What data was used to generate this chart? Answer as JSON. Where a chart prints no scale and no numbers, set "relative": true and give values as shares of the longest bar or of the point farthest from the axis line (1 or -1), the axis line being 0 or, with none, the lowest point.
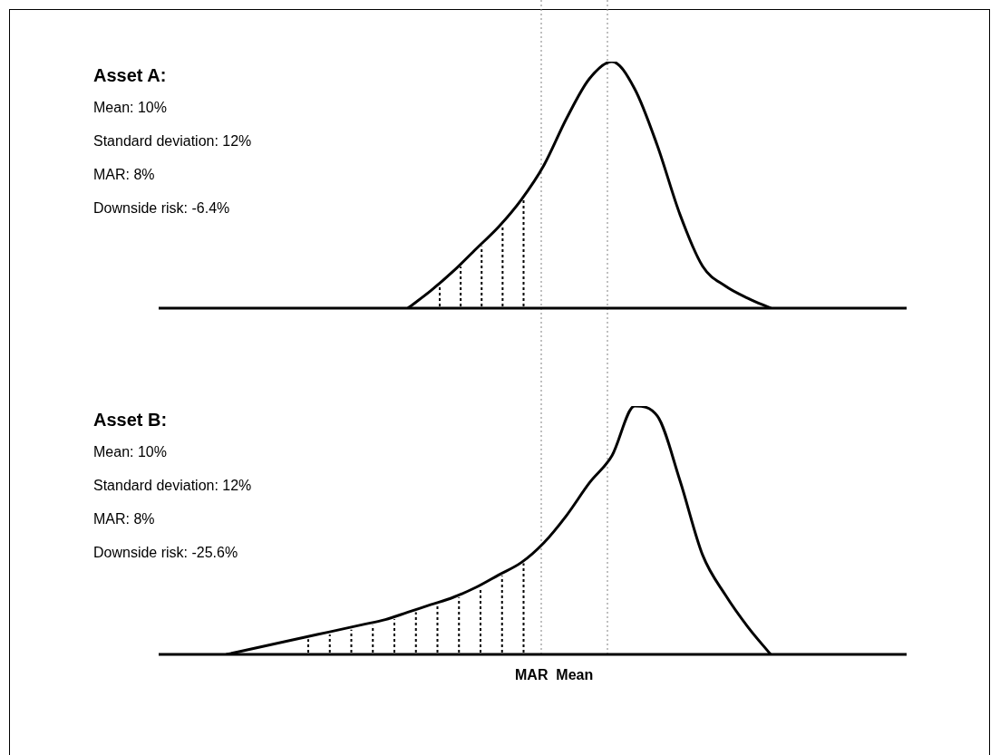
{
  "chart_data": [
    {
      "type": "line",
      "relative": true,
      "title": "Asset A:",
      "annotations": [
        "Mean: 10%",
        "Standard deviation: 12%",
        "MAR: 8%",
        "Downside risk: -6.4%"
      ],
      "categories": [
        null,
        null,
        null,
        null,
        null,
        null,
        null,
        null,
        null,
        null,
        null,
        null,
        null,
        null,
        null,
        null,
        null,
        null,
        null,
        null,
        null,
        null,
        null,
        null,
        null,
        null,
        null,
        null,
        null,
        null,
        null,
        null,
        null,
        null
      ],
      "series": [
        {
          "color": "#000000",
          "values": [
            null,
            null,
            null,
            null,
            null,
            null,
            null,
            null,
            null,
            null,
            null,
            0,
            0.07,
            0.15,
            0.24,
            0.33,
            0.44,
            0.58,
            0.77,
            0.93,
            1,
            0.89,
            0.66,
            0.38,
            0.17,
            0.09,
            0.04,
            0,
            null,
            null,
            null,
            null,
            null,
            null
          ]
        }
      ],
      "marker": "none",
      "line_style": "solid"
    },
    {
      "type": "line",
      "relative": true,
      "title": "Asset B:",
      "annotations": [
        "Mean: 10%",
        "Standard deviation: 12%",
        "MAR: 8%",
        "Downside risk: -25.6%"
      ],
      "xlabel": "MAR  Mean",
      "categories": [
        null,
        null,
        null,
        null,
        null,
        null,
        null,
        null,
        null,
        null,
        null,
        null,
        null,
        null,
        null,
        null,
        null,
        null,
        null,
        null,
        null,
        null,
        null,
        null,
        null,
        null,
        null,
        null,
        null,
        null,
        null,
        null,
        null,
        null
      ],
      "series": [
        {
          "color": "#000000",
          "values": [
            null,
            null,
            null,
            0,
            0.02,
            0.04,
            0.06,
            0.08,
            0.1,
            0.12,
            0.14,
            0.17,
            0.2,
            0.23,
            0.27,
            0.32,
            0.37,
            0.45,
            0.56,
            0.69,
            0.8,
            1,
            0.96,
            0.7,
            0.4,
            0.24,
            0.11,
            0,
            null,
            null,
            null,
            null,
            null,
            null
          ]
        }
      ],
      "marker": "none",
      "line_style": "solid"
    }
  ]
}
